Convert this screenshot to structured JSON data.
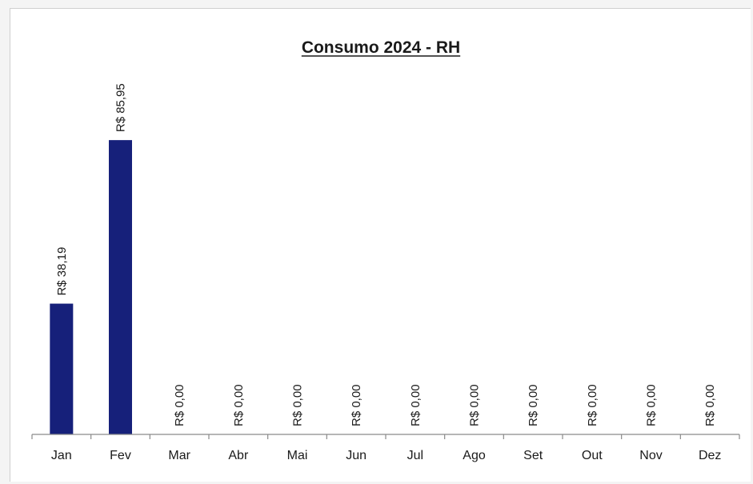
{
  "chart_data": {
    "type": "bar",
    "title": "Consumo 2024 - RH",
    "xlabel": "",
    "ylabel": "",
    "categories": [
      "Jan",
      "Fev",
      "Mar",
      "Abr",
      "Mai",
      "Jun",
      "Jul",
      "Ago",
      "Set",
      "Out",
      "Nov",
      "Dez"
    ],
    "values": [
      38.19,
      85.95,
      0,
      0,
      0,
      0,
      0,
      0,
      0,
      0,
      0,
      0
    ],
    "data_labels": [
      "R$ 38,19",
      "R$ 85,95",
      "R$ 0,00",
      "R$ 0,00",
      "R$ 0,00",
      "R$ 0,00",
      "R$ 0,00",
      "R$ 0,00",
      "R$ 0,00",
      "R$ 0,00",
      "R$ 0,00",
      "R$ 0,00"
    ],
    "ylim": [
      0,
      100
    ],
    "grid": false,
    "legend": "none",
    "bar_color": "#16207a"
  }
}
